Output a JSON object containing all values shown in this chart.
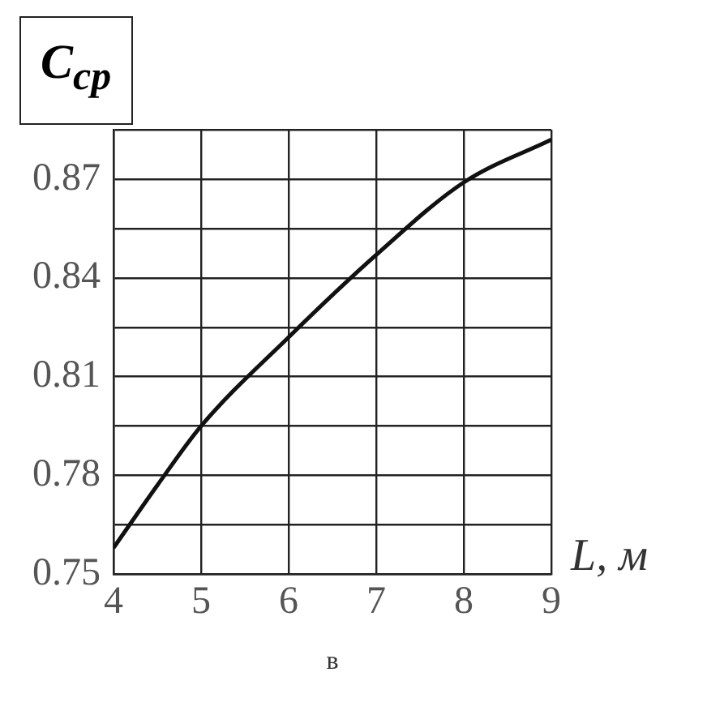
{
  "chart_data": {
    "type": "line",
    "ylabel": "C$_{ср}$",
    "xlabel": "L, м",
    "annotations": [
      "в"
    ],
    "x": [
      4,
      4.5,
      5,
      6,
      7,
      8,
      9
    ],
    "series": [
      {
        "color": "#111111",
        "values": [
          0.758,
          0.777,
          0.795,
          0.822,
          0.847,
          0.869,
          0.882
        ]
      }
    ],
    "xlim": [
      4,
      9
    ],
    "xticks": [
      4,
      5,
      6,
      7,
      8,
      9
    ],
    "ylim": [
      0.75,
      0.885
    ],
    "yticks": [
      {
        "value": 0.75,
        "label": "0.75"
      },
      {
        "value": 0.765,
        "label": null
      },
      {
        "value": 0.78,
        "label": "0.78"
      },
      {
        "value": 0.795,
        "label": null
      },
      {
        "value": 0.81,
        "label": "0.81"
      },
      {
        "value": 0.825,
        "label": null
      },
      {
        "value": 0.84,
        "label": "0.84"
      },
      {
        "value": 0.855,
        "label": null
      },
      {
        "value": 0.87,
        "label": "0.87"
      },
      {
        "value": 0.885,
        "label": null
      }
    ],
    "grid": true,
    "legend": false,
    "marker": "none",
    "line_style": "solid"
  }
}
